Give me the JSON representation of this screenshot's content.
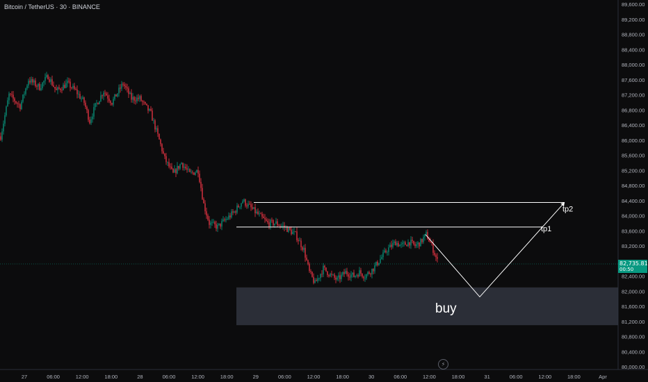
{
  "header": {
    "symbol": "Bitcoin / TetherUS · 30 · BINANCE"
  },
  "colors": {
    "background": "#0c0c0d",
    "up": "#089981",
    "down": "#f23645",
    "axis_text": "#b2b5be",
    "annotation": "#ffffff",
    "zone": "#363a45"
  },
  "price_tag": {
    "price": "82,735.81",
    "countdown": "00:50"
  },
  "chart_data": {
    "type": "candlestick",
    "title": "Bitcoin / TetherUS · 30 · BINANCE",
    "ylim": [
      80000,
      89800
    ],
    "y_ticks": [
      "89,600.00",
      "89,200.00",
      "88,800.00",
      "88,400.00",
      "88,000.00",
      "87,600.00",
      "87,200.00",
      "86,800.00",
      "86,400.00",
      "86,000.00",
      "85,600.00",
      "85,200.00",
      "84,800.00",
      "84,400.00",
      "84,000.00",
      "83,600.00",
      "83,200.00",
      "82,800.00",
      "82,400.00",
      "82,000.00",
      "81,600.00",
      "81,200.00",
      "80,800.00",
      "80,400.00",
      "80,000.00"
    ],
    "x_ticks": [
      "27",
      "06:00",
      "12:00",
      "18:00",
      "28",
      "06:00",
      "12:00",
      "18:00",
      "29",
      "06:00",
      "12:00",
      "18:00",
      "30",
      "06:00",
      "12:00",
      "18:00",
      "31",
      "06:00",
      "12:00",
      "18:00",
      "Apr"
    ],
    "ohlc_waypoints": [
      [
        0,
        86100
      ],
      [
        6,
        87200
      ],
      [
        14,
        86900
      ],
      [
        20,
        87600
      ],
      [
        28,
        87400
      ],
      [
        34,
        87700
      ],
      [
        40,
        87300
      ],
      [
        48,
        87500
      ],
      [
        54,
        87300
      ],
      [
        60,
        87000
      ],
      [
        64,
        86500
      ],
      [
        68,
        86900
      ],
      [
        74,
        87300
      ],
      [
        80,
        87000
      ],
      [
        88,
        87500
      ],
      [
        94,
        87100
      ],
      [
        100,
        87100
      ],
      [
        108,
        86700
      ],
      [
        114,
        86000
      ],
      [
        118,
        85500
      ],
      [
        124,
        85100
      ],
      [
        130,
        85400
      ],
      [
        136,
        85100
      ],
      [
        142,
        85200
      ],
      [
        146,
        84300
      ],
      [
        150,
        83800
      ],
      [
        156,
        83700
      ],
      [
        162,
        83900
      ],
      [
        168,
        84100
      ],
      [
        174,
        84400
      ],
      [
        180,
        84200
      ],
      [
        186,
        84000
      ],
      [
        192,
        83800
      ],
      [
        198,
        83800
      ],
      [
        204,
        83700
      ],
      [
        208,
        83600
      ],
      [
        212,
        83500
      ],
      [
        218,
        83100
      ],
      [
        222,
        82500
      ],
      [
        226,
        82200
      ],
      [
        232,
        82600
      ],
      [
        238,
        82400
      ],
      [
        242,
        82300
      ],
      [
        248,
        82500
      ],
      [
        254,
        82400
      ],
      [
        258,
        82500
      ],
      [
        262,
        82400
      ],
      [
        268,
        82600
      ],
      [
        274,
        82900
      ],
      [
        278,
        83100
      ],
      [
        284,
        83300
      ],
      [
        288,
        83200
      ],
      [
        294,
        83300
      ],
      [
        298,
        83200
      ],
      [
        302,
        83300
      ],
      [
        306,
        83500
      ],
      [
        310,
        83200
      ],
      [
        314,
        82800
      ]
    ],
    "annotations": {
      "zone_label": "buy",
      "tp1_label": "tp1",
      "tp2_label": "tp2",
      "tp1_price": 83700,
      "tp2_price": 84350,
      "zone_range": [
        81100,
        82100
      ],
      "projection": [
        [
          82800,
          0
        ],
        [
          81800,
          1
        ],
        [
          84350,
          2
        ]
      ]
    }
  }
}
